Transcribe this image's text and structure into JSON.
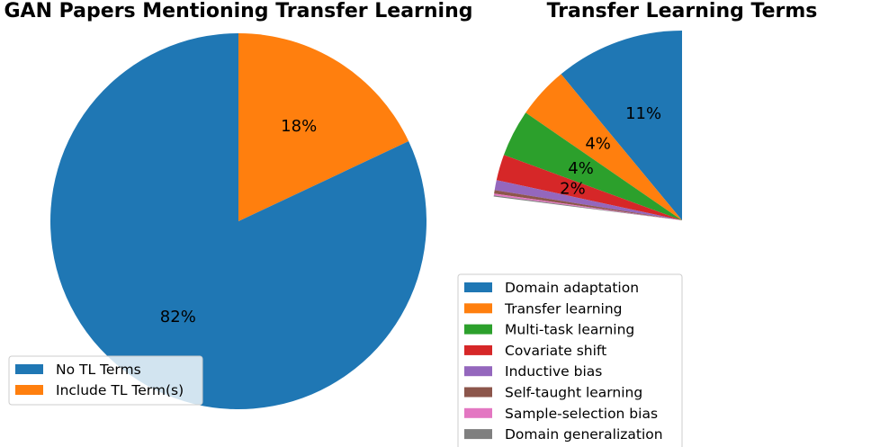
{
  "chart_data": [
    {
      "type": "pie",
      "title": "GAN Papers Mentioning Transfer Learning",
      "start_angle": 90,
      "direction": "clockwise",
      "slices": [
        {
          "label": "Include TL Term(s)",
          "value": 18,
          "pct_label": "18%",
          "color": "#ff7f0e"
        },
        {
          "label": "No TL Terms",
          "value": 82,
          "pct_label": "82%",
          "color": "#1f77b4"
        }
      ],
      "legend": {
        "placement": "lower-left",
        "order": [
          "No TL Terms",
          "Include TL Term(s)"
        ]
      }
    },
    {
      "type": "pie",
      "title": "Transfer Learning Terms",
      "start_angle": 90,
      "direction": "counterclockwise",
      "partial": true,
      "slices": [
        {
          "label": "Domain adaptation",
          "value": 11.0,
          "pct_label": "11%",
          "color": "#1f77b4"
        },
        {
          "label": "Transfer learning",
          "value": 4.4,
          "pct_label": "4%",
          "color": "#ff7f0e"
        },
        {
          "label": "Multi-task learning",
          "value": 4.0,
          "pct_label": "4%",
          "color": "#2ca02c"
        },
        {
          "label": "Covariate shift",
          "value": 2.2,
          "pct_label": "2%",
          "color": "#d62728"
        },
        {
          "label": "Inductive bias",
          "value": 0.85,
          "pct_label": "",
          "color": "#9467bd"
        },
        {
          "label": "Self-taught learning",
          "value": 0.3,
          "pct_label": "",
          "color": "#8c564b"
        },
        {
          "label": "Sample-selection bias",
          "value": 0.15,
          "pct_label": "",
          "color": "#e377c2"
        },
        {
          "label": "Domain generalization",
          "value": 0.1,
          "pct_label": "",
          "color": "#7f7f7f"
        }
      ],
      "legend": {
        "placement": "lower-right"
      }
    }
  ]
}
